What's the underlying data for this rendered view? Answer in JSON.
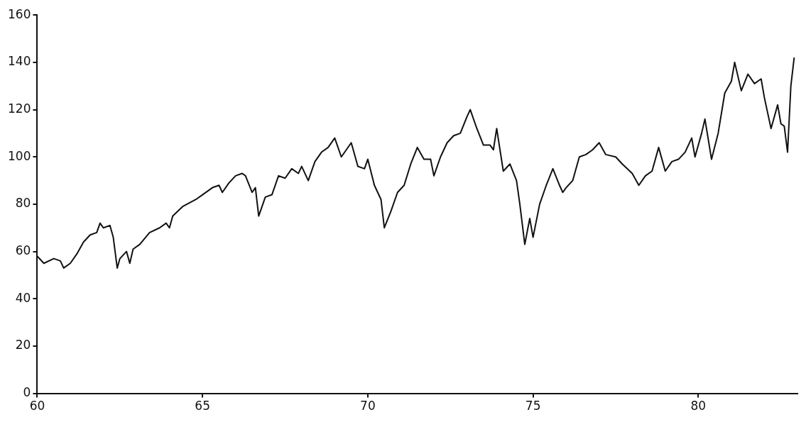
{
  "chart_data": {
    "type": "line",
    "x": [
      60.0,
      60.2,
      60.5,
      60.7,
      60.8,
      61.0,
      61.2,
      61.4,
      61.6,
      61.8,
      61.9,
      62.0,
      62.2,
      62.3,
      62.42,
      62.5,
      62.7,
      62.8,
      62.9,
      63.1,
      63.4,
      63.7,
      63.9,
      64.0,
      64.1,
      64.4,
      64.8,
      65.0,
      65.3,
      65.5,
      65.6,
      65.8,
      66.0,
      66.2,
      66.3,
      66.5,
      66.6,
      66.7,
      66.9,
      67.1,
      67.3,
      67.5,
      67.7,
      67.9,
      68.0,
      68.2,
      68.4,
      68.6,
      68.8,
      69.0,
      69.2,
      69.5,
      69.7,
      69.9,
      70.0,
      70.2,
      70.4,
      70.5,
      70.7,
      70.9,
      71.1,
      71.3,
      71.5,
      71.7,
      71.9,
      72.0,
      72.2,
      72.4,
      72.6,
      72.8,
      73.0,
      73.1,
      73.3,
      73.5,
      73.7,
      73.8,
      73.9,
      74.1,
      74.3,
      74.5,
      74.6,
      74.75,
      74.9,
      75.0,
      75.2,
      75.4,
      75.6,
      75.8,
      75.9,
      76.0,
      76.2,
      76.4,
      76.6,
      76.8,
      77.0,
      77.2,
      77.5,
      77.7,
      78.0,
      78.2,
      78.4,
      78.6,
      78.8,
      79.0,
      79.2,
      79.4,
      79.6,
      79.8,
      79.9,
      80.1,
      80.2,
      80.4,
      80.6,
      80.8,
      81.0,
      81.1,
      81.3,
      81.5,
      81.7,
      81.9,
      82.0,
      82.2,
      82.4,
      82.5,
      82.6,
      82.7,
      82.8,
      82.9
    ],
    "series": [
      {
        "color": "#111111",
        "values": [
          58,
          55,
          57,
          56,
          53,
          55,
          59,
          64,
          67,
          68,
          72,
          70,
          71,
          66,
          53,
          57,
          60,
          55,
          61,
          63,
          68,
          70,
          72,
          70,
          75,
          79,
          82,
          84,
          87,
          88,
          85,
          89,
          92,
          93,
          92,
          85,
          87,
          75,
          83,
          84,
          92,
          91,
          95,
          93,
          96,
          90,
          98,
          102,
          104,
          108,
          100,
          106,
          96,
          95,
          99,
          88,
          82,
          70,
          77,
          85,
          88,
          97,
          104,
          99,
          99,
          92,
          100,
          106,
          109,
          110,
          117,
          120,
          112,
          105,
          105,
          103,
          112,
          94,
          97,
          90,
          80,
          63,
          74,
          66,
          80,
          88,
          95,
          88,
          85,
          87,
          90,
          100,
          101,
          103,
          106,
          101,
          100,
          97,
          93,
          88,
          92,
          94,
          104,
          94,
          98,
          99,
          102,
          108,
          100,
          110,
          116,
          99,
          110,
          127,
          132,
          140,
          128,
          135,
          131,
          133,
          125,
          112,
          122,
          114,
          113,
          102,
          130,
          142
        ]
      }
    ],
    "xlim": [
      60,
      83
    ],
    "xticks": [
      60,
      65,
      70,
      75,
      80
    ],
    "ylim": [
      0,
      160
    ],
    "yticks": [
      0,
      20,
      40,
      60,
      80,
      100,
      120,
      140,
      160
    ],
    "grid": false,
    "legend": false,
    "marker": "none",
    "line_style": "solid"
  }
}
